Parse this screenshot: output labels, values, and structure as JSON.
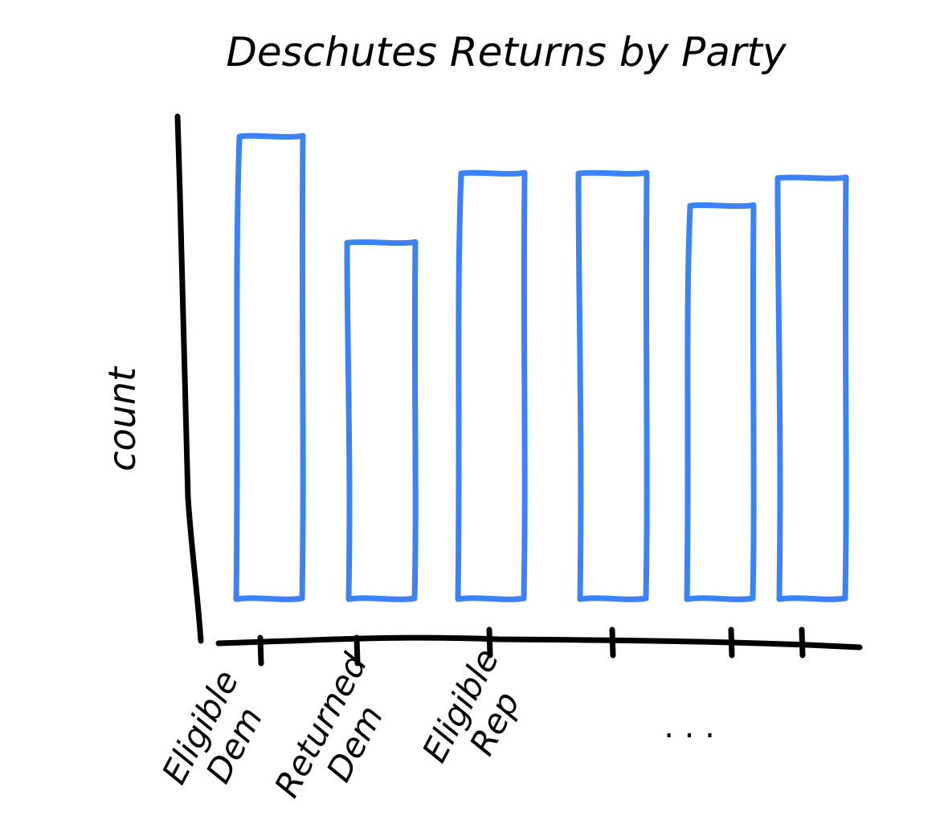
{
  "chart_data": {
    "type": "bar",
    "title": "Deschutes Returns by Party",
    "xlabel": "",
    "ylabel": "count",
    "categories": [
      "Eligible Dem",
      "Returned Dem",
      "Eligible Rep",
      "",
      "",
      ""
    ],
    "values": [
      100,
      77,
      92,
      92,
      85,
      91
    ],
    "ylim": [
      0,
      100
    ],
    "grid": false,
    "legend": "none",
    "continuation_label": ". . .",
    "bar_color": "#3b82f6",
    "axis_color": "#000000"
  }
}
